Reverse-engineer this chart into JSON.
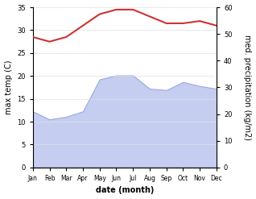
{
  "months": [
    "Jan",
    "Feb",
    "Mar",
    "Apr",
    "May",
    "Jun",
    "Jul",
    "Aug",
    "Sep",
    "Oct",
    "Nov",
    "Dec"
  ],
  "temperature": [
    28.5,
    27.5,
    28.5,
    31.0,
    33.5,
    34.5,
    34.5,
    33.0,
    31.5,
    31.5,
    32.0,
    31.0
  ],
  "precipitation": [
    21.0,
    18.0,
    19.0,
    21.0,
    33.0,
    34.5,
    34.5,
    29.5,
    29.0,
    32.0,
    30.5,
    29.5
  ],
  "temp_color": "#cc3333",
  "precip_fill_color": "#c5cdf0",
  "precip_edge_color": "#9aa8e0",
  "left_ylabel": "max temp (C)",
  "right_ylabel": "med. precipitation (kg/m2)",
  "xlabel": "date (month)",
  "ylim_temp": [
    0,
    35
  ],
  "ylim_precip": [
    0,
    60
  ],
  "yticks_temp": [
    0,
    5,
    10,
    15,
    20,
    25,
    30,
    35
  ],
  "yticks_precip": [
    0,
    10,
    20,
    30,
    40,
    50,
    60
  ],
  "bg_color": "#ffffff"
}
